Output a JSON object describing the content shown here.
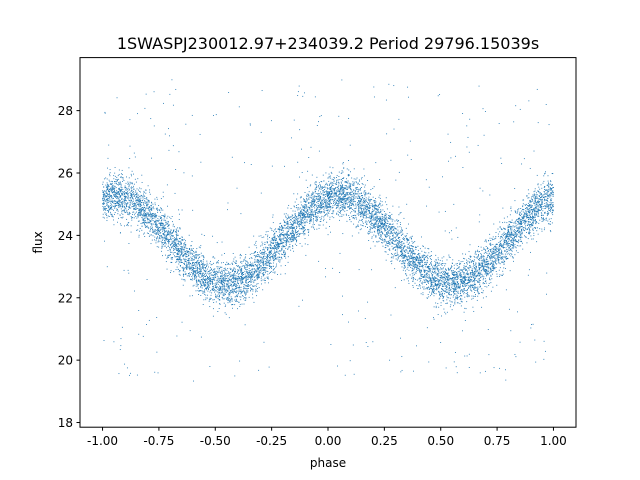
{
  "chart_data": {
    "type": "scatter",
    "title": "1SWASPJ230012.97+234039.2 Period 29796.15039s",
    "xlabel": "phase",
    "ylabel": "flux",
    "xlim": [
      -1.1,
      1.1
    ],
    "ylim": [
      17.85,
      29.7
    ],
    "xticks": [
      "-1.00",
      "-0.75",
      "-0.50",
      "-0.25",
      "0.00",
      "0.25",
      "0.50",
      "0.75",
      "1.00"
    ],
    "yticks": [
      "18",
      "20",
      "22",
      "24",
      "26",
      "28"
    ],
    "grid": false,
    "legend": "none",
    "color": "#1f77b4",
    "series": [
      {
        "model": "sinusoid",
        "mean": 23.85,
        "amplitude": 1.4,
        "peak_phase": 0.05,
        "period_in_phase": 1.0,
        "scatter_sigma": 0.35,
        "outlier_range": [
          19.3,
          29.0
        ],
        "points_shown": 9000
      }
    ]
  }
}
